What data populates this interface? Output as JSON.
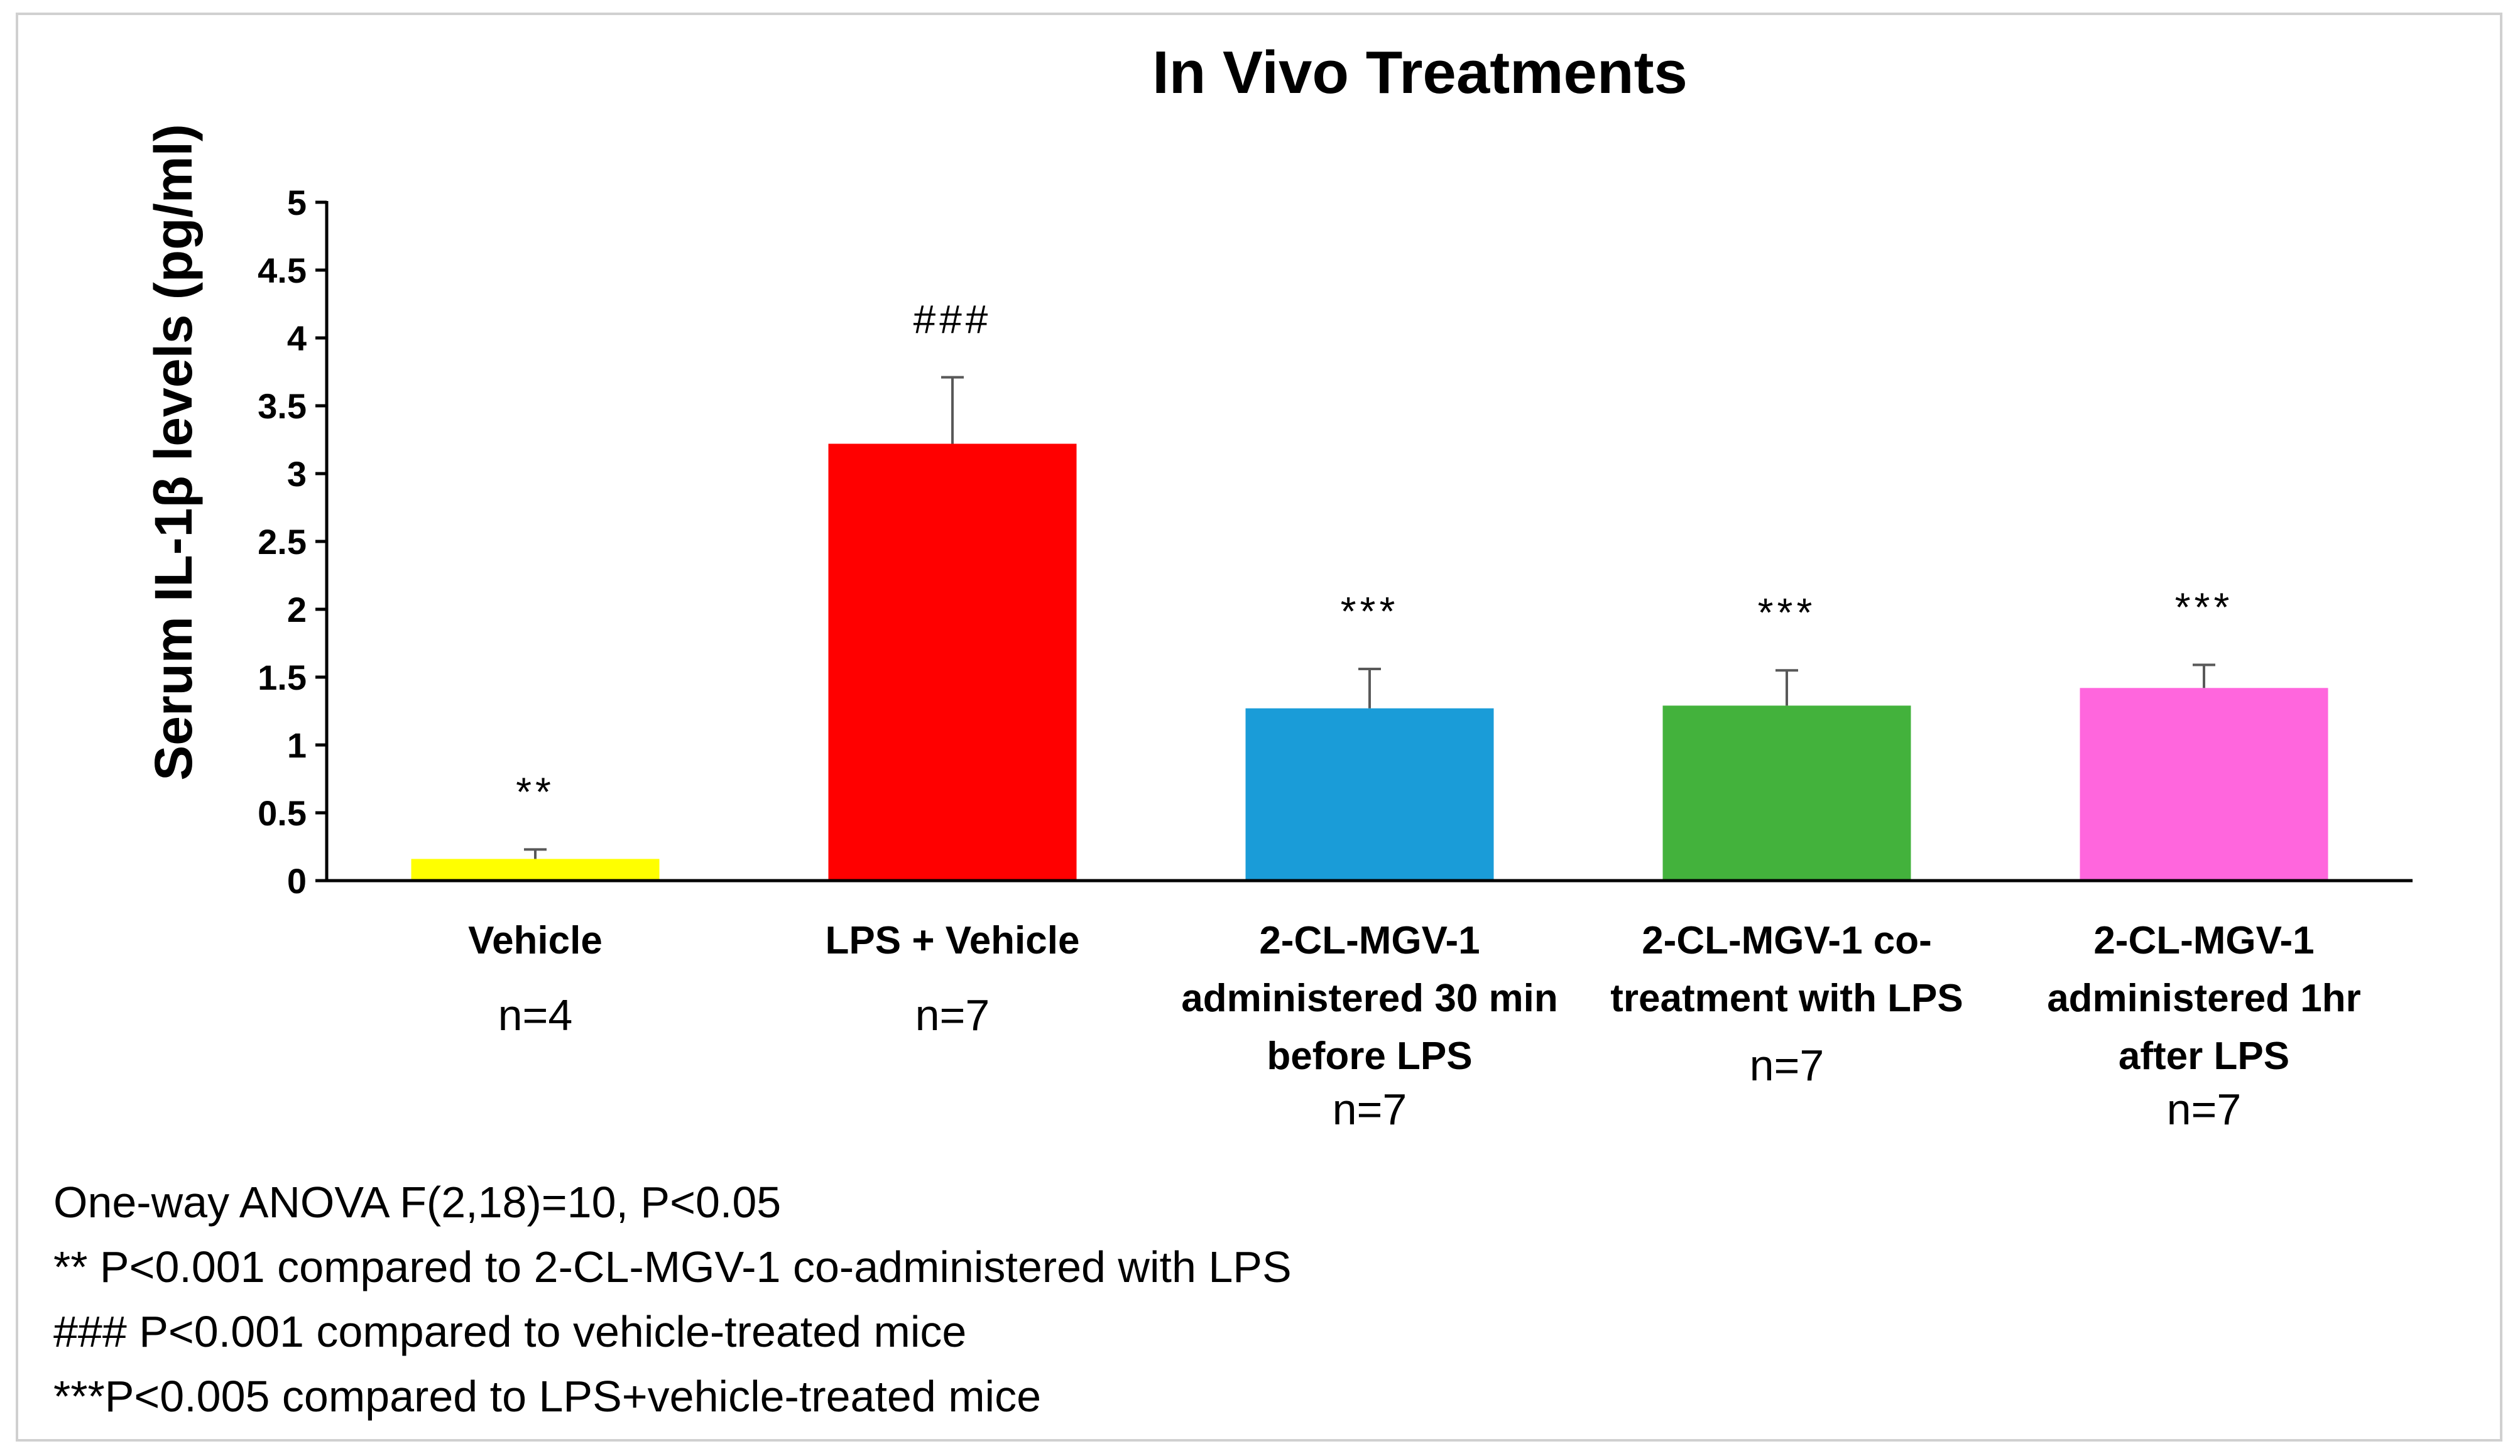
{
  "chart_data": {
    "type": "bar",
    "title": "In Vivo Treatments",
    "xlabel": "",
    "ylabel": "Serum IL-1β levels (pg/ml)",
    "ylim": [
      0,
      5
    ],
    "yticks": [
      "0",
      "0.5",
      "1",
      "1.5",
      "2",
      "2.5",
      "3",
      "3.5",
      "4",
      "4.5",
      "5"
    ],
    "grid": false,
    "categories": [
      {
        "lines": [
          "Vehicle"
        ],
        "n": "n=4"
      },
      {
        "lines": [
          "LPS + Vehicle"
        ],
        "n": "n=7"
      },
      {
        "lines": [
          "2-CL-MGV-1",
          "administered 30 min",
          "before LPS"
        ],
        "n": "n=7"
      },
      {
        "lines": [
          "2-CL-MGV-1 co-",
          "treatment with LPS"
        ],
        "n": "n=7"
      },
      {
        "lines": [
          "2-CL-MGV-1",
          "administered 1hr",
          "after LPS"
        ],
        "n": "n=7"
      }
    ],
    "values": [
      0.16,
      3.22,
      1.27,
      1.29,
      1.42
    ],
    "errors": [
      0.07,
      0.49,
      0.29,
      0.26,
      0.17
    ],
    "colors": [
      "#ffff00",
      "#ff0000",
      "#1a9cd8",
      "#43b23c",
      "#ff66dd"
    ],
    "significance": [
      "**",
      "###",
      "***",
      "***",
      "***"
    ]
  },
  "footnotes": [
    "One-way ANOVA F(2,18)=10, P<0.05",
    "** P<0.001 compared to 2-CL-MGV-1 co-administered with LPS",
    "### P<0.001 compared to vehicle-treated mice",
    "***P<0.005 compared to LPS+vehicle-treated mice"
  ]
}
